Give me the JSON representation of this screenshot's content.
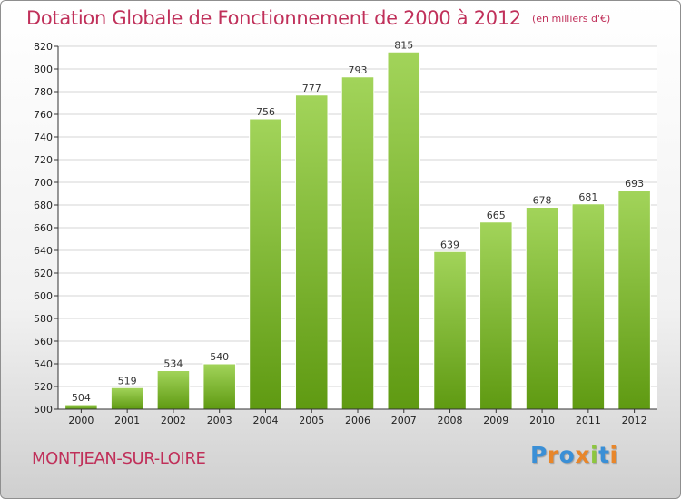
{
  "title": "Dotation Globale de Fonctionnement de 2000 à 2012",
  "subtitle": "(en milliers d'€)",
  "commune": "MONTJEAN-SUR-LOIRE",
  "logo": {
    "text": "Proxiti",
    "letter_colors": [
      "#3a8fd6",
      "#e8862a",
      "#3a8fd6",
      "#e8862a",
      "#8dc63f",
      "#3a8fd6",
      "#e8862a"
    ]
  },
  "colors": {
    "title": "#c0305a",
    "bar_top": "#a2d45a",
    "bar_bottom": "#5f9a12",
    "grid": "#d4d4d4"
  },
  "chart_data": {
    "type": "bar",
    "categories": [
      "2000",
      "2001",
      "2002",
      "2003",
      "2004",
      "2005",
      "2006",
      "2007",
      "2008",
      "2009",
      "2010",
      "2011",
      "2012"
    ],
    "values": [
      504,
      519,
      534,
      540,
      756,
      777,
      793,
      815,
      639,
      665,
      678,
      681,
      693
    ],
    "title": "Dotation Globale de Fonctionnement de 2000 à 2012",
    "subtitle": "(en milliers d'€)",
    "ylim": [
      500,
      820
    ],
    "yticks": [
      500,
      520,
      540,
      560,
      580,
      600,
      620,
      640,
      660,
      680,
      700,
      720,
      740,
      760,
      780,
      800,
      820
    ],
    "grid": true,
    "data_labels": true
  }
}
